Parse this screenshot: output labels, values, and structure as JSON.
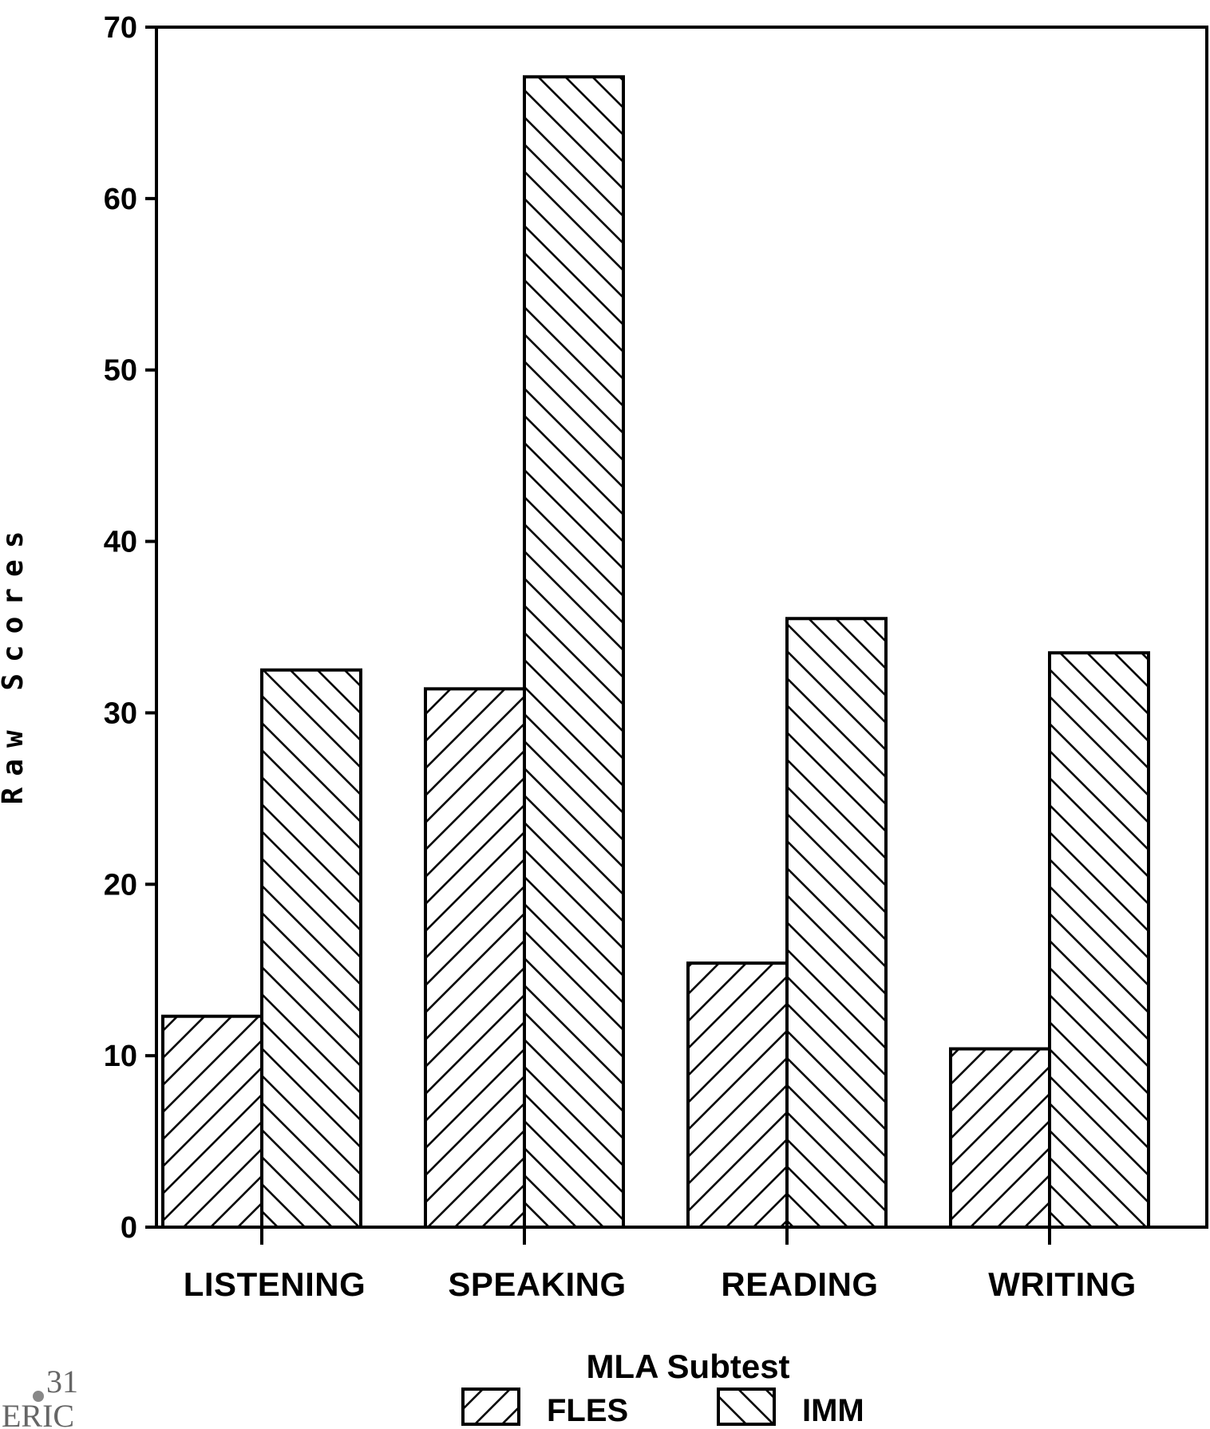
{
  "chart_data": {
    "type": "bar",
    "categories": [
      "LISTENING",
      "SPEAKING",
      "READING",
      "WRITING"
    ],
    "series": [
      {
        "name": "FLES",
        "values": [
          12.3,
          31.4,
          15.4,
          10.4
        ],
        "pattern": "forward-hatch"
      },
      {
        "name": "IMM",
        "values": [
          32.5,
          67.1,
          35.5,
          33.5
        ],
        "pattern": "back-hatch"
      }
    ],
    "title": "",
    "xlabel": "MLA Subtest",
    "ylabel": "Raw Scores",
    "ylim": [
      0,
      70
    ],
    "yticks": [
      0,
      10,
      20,
      30,
      40,
      50,
      60,
      70
    ],
    "grid": false,
    "legend_position": "bottom-center"
  },
  "watermark": {
    "text": "ERIC",
    "page_number": "31"
  },
  "colors": {
    "ink": "#000000",
    "background": "#ffffff"
  }
}
